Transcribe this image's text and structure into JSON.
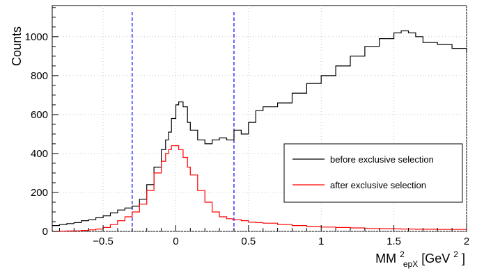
{
  "chart_data": {
    "type": "line",
    "xlabel": {
      "base": "MM",
      "sup": "2",
      "sub": "epX",
      "unit_pre": " [GeV",
      "unit_sup": "2",
      "unit_post": "]"
    },
    "ylabel": "Counts",
    "xlim": [
      -0.85,
      2.0
    ],
    "ylim": [
      0,
      1160
    ],
    "xticks": [
      -0.5,
      0,
      0.5,
      1,
      1.5,
      2
    ],
    "xtick_labels": [
      "−0.5",
      "0",
      "0.5",
      "1",
      "1.5",
      "2"
    ],
    "yticks": [
      0,
      200,
      400,
      600,
      800,
      1000
    ],
    "ytick_labels": [
      "0",
      "200",
      "400",
      "600",
      "800",
      "1000"
    ],
    "grid": true,
    "legend_position": "right",
    "cut_lines": {
      "x": [
        -0.3,
        0.4
      ],
      "color": "#0000ff"
    },
    "x": [
      -0.85,
      -0.8,
      -0.75,
      -0.7,
      -0.65,
      -0.6,
      -0.55,
      -0.5,
      -0.45,
      -0.4,
      -0.35,
      -0.3,
      -0.25,
      -0.2,
      -0.15,
      -0.1,
      -0.07,
      -0.05,
      -0.03,
      0,
      0.02,
      0.05,
      0.08,
      0.1,
      0.15,
      0.2,
      0.25,
      0.3,
      0.35,
      0.39,
      0.4,
      0.45,
      0.5,
      0.55,
      0.6,
      0.7,
      0.8,
      0.9,
      1.0,
      1.1,
      1.2,
      1.3,
      1.4,
      1.5,
      1.55,
      1.6,
      1.65,
      1.7,
      1.8,
      1.9,
      2.0
    ],
    "series": [
      {
        "name": "before exclusive selection",
        "color": "#000000",
        "values": [
          30,
          35,
          40,
          45,
          55,
          60,
          70,
          80,
          95,
          110,
          120,
          130,
          165,
          240,
          330,
          420,
          470,
          510,
          580,
          650,
          665,
          640,
          560,
          520,
          470,
          450,
          470,
          480,
          470,
          470,
          520,
          500,
          560,
          620,
          640,
          660,
          710,
          760,
          800,
          850,
          900,
          950,
          990,
          1020,
          1030,
          1020,
          1000,
          970,
          960,
          940,
          920
        ]
      },
      {
        "name": "after exclusive selection",
        "color": "#ff0000",
        "values": [
          0,
          1,
          2,
          3,
          5,
          8,
          12,
          20,
          35,
          55,
          75,
          100,
          140,
          210,
          300,
          360,
          400,
          420,
          440,
          440,
          420,
          380,
          330,
          290,
          210,
          150,
          100,
          75,
          65,
          60,
          60,
          55,
          48,
          45,
          42,
          35,
          30,
          25,
          22,
          20,
          18,
          15,
          14,
          13,
          12,
          12,
          11,
          11,
          10,
          10,
          10
        ]
      }
    ]
  }
}
